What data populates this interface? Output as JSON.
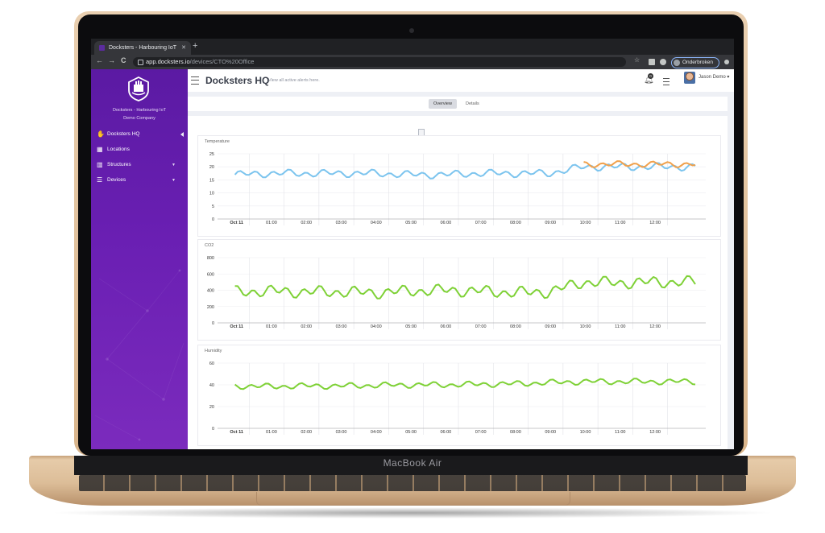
{
  "device": {
    "brand_label": "MacBook Air"
  },
  "browser": {
    "tab_title": "Docksters - Harbouring IoT",
    "tab_close": "✕",
    "new_tab": "+",
    "url_host": "app.docksters.io",
    "url_path": "/devices/CTO%20Office",
    "profile_label": "Onderbroken",
    "back": "←",
    "forward": "→",
    "reload": "C"
  },
  "sidebar": {
    "company_line1": "Docksters - Harbouring IoT",
    "company_line2": "Demo Company",
    "items": [
      {
        "label": "Docksters HQ",
        "icon": "hand-icon",
        "glyph": "✋",
        "active": true,
        "has_caret": false
      },
      {
        "label": "Locations",
        "icon": "map-icon",
        "glyph": "▦",
        "active": false,
        "has_caret": false
      },
      {
        "label": "Structures",
        "icon": "building-icon",
        "glyph": "▥",
        "active": false,
        "has_caret": true
      },
      {
        "label": "Devices",
        "icon": "server-icon",
        "glyph": "☰",
        "active": false,
        "has_caret": true
      }
    ],
    "caret": "▼"
  },
  "header": {
    "title": "Docksters HQ",
    "subtitle": "View all active alerts here.",
    "notification_count": "0",
    "user_name": "Jason Demo ▾"
  },
  "subtabs": [
    "Overview",
    "Details"
  ],
  "colors": {
    "accent_purple": "#6a1fb3",
    "temp_blue": "#7cc4ee",
    "temp_orange": "#f0a04b",
    "green": "#7ed136"
  },
  "chart_data": [
    {
      "type": "line",
      "title": "Temperature",
      "x_ticks": [
        "Oct 11",
        "01:00",
        "02:00",
        "03:00",
        "04:00",
        "05:00",
        "06:00",
        "07:00",
        "08:00",
        "09:00",
        "10:00",
        "11:00",
        "12:00"
      ],
      "ylim": [
        0,
        25
      ],
      "y_ticks": [
        0,
        5,
        10,
        15,
        20,
        25
      ],
      "grid": true,
      "series": [
        {
          "color": "#7cc4ee",
          "base": [
            17,
            17.5,
            17.5,
            17.5,
            17.5,
            17,
            17,
            17.5,
            17.5,
            17.5,
            20,
            20,
            20,
            20
          ],
          "amp": 1.6
        },
        {
          "color": "#f0a04b",
          "start_hour": 10,
          "base": [
            21,
            21,
            21,
            21
          ],
          "amp": 1.3
        }
      ]
    },
    {
      "type": "line",
      "title": "CO2",
      "x_ticks": [
        "Oct 11",
        "01:00",
        "02:00",
        "03:00",
        "04:00",
        "05:00",
        "06:00",
        "07:00",
        "08:00",
        "09:00",
        "10:00",
        "11:00",
        "12:00"
      ],
      "ylim": [
        0,
        800
      ],
      "y_ticks": [
        0,
        200,
        400,
        600,
        800
      ],
      "grid": true,
      "series": [
        {
          "color": "#7ed136",
          "base": [
            380,
            390,
            380,
            380,
            370,
            390,
            400,
            390,
            370,
            380,
            500,
            490,
            500,
            500
          ],
          "amp": 80
        }
      ]
    },
    {
      "type": "line",
      "title": "Humidity",
      "x_ticks": [
        "Oct 11",
        "01:00",
        "02:00",
        "03:00",
        "04:00",
        "05:00",
        "06:00",
        "07:00",
        "08:00",
        "09:00",
        "10:00",
        "11:00",
        "12:00"
      ],
      "ylim": [
        0,
        60
      ],
      "y_ticks": [
        0,
        20,
        40,
        60
      ],
      "grid": true,
      "series": [
        {
          "color": "#7ed136",
          "base": [
            39,
            38.5,
            39,
            39,
            39.5,
            40,
            40,
            40.5,
            41,
            42,
            43,
            43,
            43,
            43
          ],
          "amp": 3
        }
      ]
    }
  ]
}
